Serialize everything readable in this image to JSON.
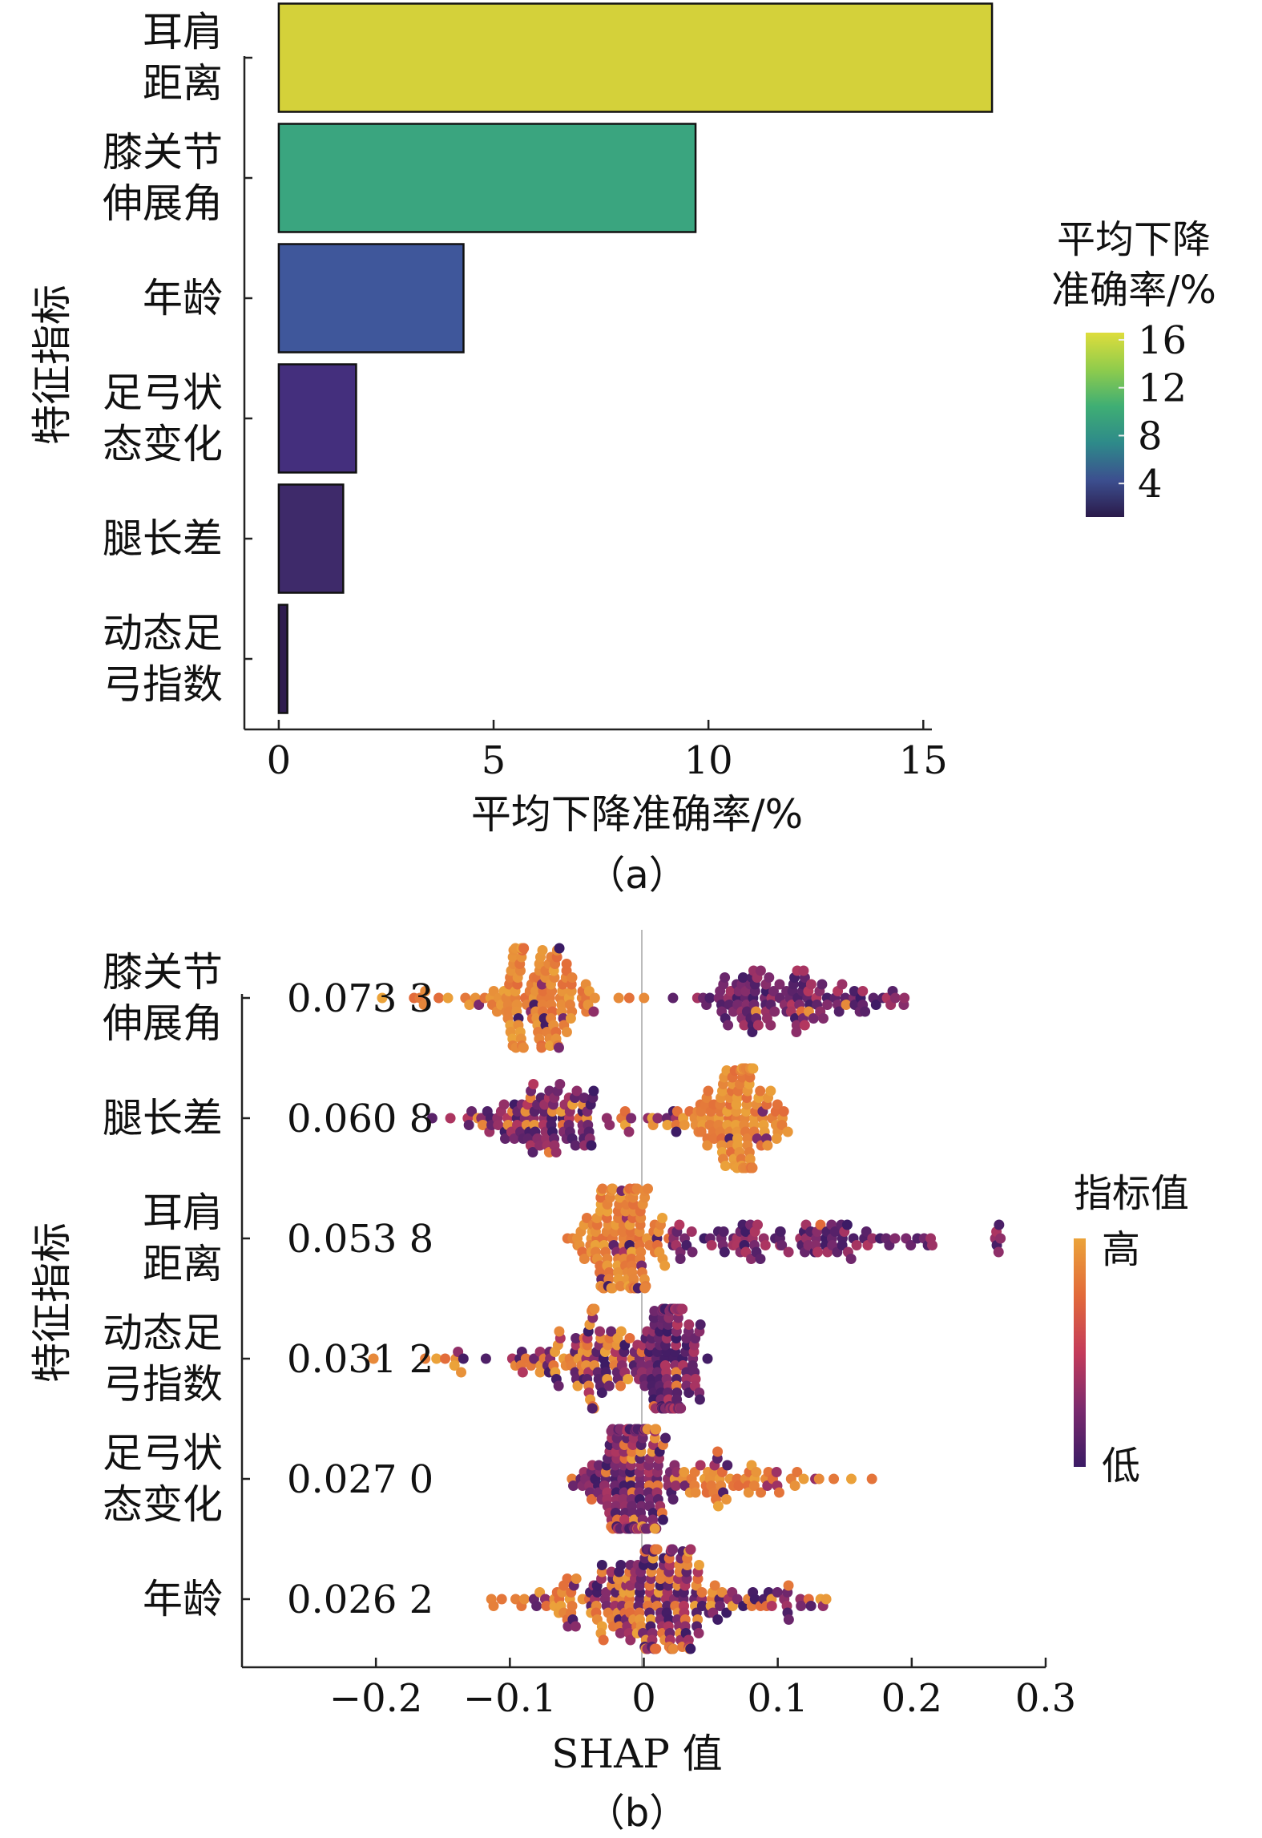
{
  "chart_data": [
    {
      "type": "bar",
      "orientation": "horizontal",
      "panel_label": "（a）",
      "title": "",
      "xlabel": "平均下降准确率/%",
      "ylabel": "特征指标",
      "categories": [
        {
          "lines": [
            "耳肩",
            "距离"
          ],
          "value": 16.6,
          "color": "#d4d13a"
        },
        {
          "lines": [
            "膝关节",
            "伸展角"
          ],
          "value": 9.7,
          "color": "#3aa57f"
        },
        {
          "lines": [
            "年龄"
          ],
          "value": 4.3,
          "color": "#3f579b"
        },
        {
          "lines": [
            "足弓状",
            "态变化"
          ],
          "value": 1.8,
          "color": "#442f7d"
        },
        {
          "lines": [
            "腿长差"
          ],
          "value": 1.5,
          "color": "#3e2a6a"
        },
        {
          "lines": [
            "动态足",
            "弓指数"
          ],
          "value": 0.2,
          "color": "#2f1c4f"
        }
      ],
      "xlim": [
        -0.8,
        15.2
      ],
      "xticks": [
        "0",
        "5",
        "10",
        "15"
      ],
      "xtick_values": [
        0,
        5,
        10,
        15
      ],
      "grid": false,
      "colorbar": {
        "title_lines": [
          "平均下降",
          "准确率/%"
        ],
        "ticks": [
          "16",
          "12",
          "8",
          "4"
        ],
        "tick_values": [
          16,
          12,
          8,
          4
        ],
        "range": [
          1.2,
          16.6
        ],
        "colors": [
          "#2b1a4a",
          "#3c4f8f",
          "#2e8a8a",
          "#3fae74",
          "#8fcc4c",
          "#dedd3c"
        ]
      }
    },
    {
      "type": "scatter",
      "variant": "beeswarm",
      "panel_label": "（b）",
      "title": "",
      "xlabel": "SHAP 值",
      "ylabel": "特征指标",
      "xlim": [
        -0.3,
        0.3
      ],
      "xticks": [
        "−0.2",
        "−0.1",
        "0",
        "0.1",
        "0.2",
        "0.3"
      ],
      "xtick_values": [
        -0.2,
        -0.1,
        0,
        0.1,
        0.2,
        0.3
      ],
      "features": [
        {
          "lines": [
            "膝关节",
            "伸展角"
          ],
          "importance": "0.073 3",
          "seed": 11,
          "n": 260,
          "clusters": [
            {
              "c": -0.078,
              "s": 0.022,
              "w": 0.5,
              "hi": 0.95
            },
            {
              "c": 0.095,
              "s": 0.035,
              "w": 0.44,
              "hi": 0.04
            },
            {
              "c": -0.16,
              "s": 0.02,
              "w": 0.03,
              "hi": 0.9
            },
            {
              "c": 0.18,
              "s": 0.02,
              "w": 0.03,
              "hi": 0.05
            }
          ]
        },
        {
          "lines": [
            "腿长差"
          ],
          "importance": "0.060 8",
          "seed": 23,
          "n": 250,
          "clusters": [
            {
              "c": -0.07,
              "s": 0.03,
              "w": 0.44,
              "hi": 0.12
            },
            {
              "c": 0.07,
              "s": 0.018,
              "w": 0.48,
              "hi": 0.95
            },
            {
              "c": 0.0,
              "s": 0.02,
              "w": 0.08,
              "hi": 0.5
            }
          ]
        },
        {
          "lines": [
            "耳肩",
            "距离"
          ],
          "importance": "0.053 8",
          "seed": 37,
          "n": 240,
          "clusters": [
            {
              "c": -0.02,
              "s": 0.018,
              "w": 0.62,
              "hi": 0.92
            },
            {
              "c": 0.1,
              "s": 0.055,
              "w": 0.36,
              "hi": 0.03
            },
            {
              "c": 0.265,
              "s": 0.002,
              "w": 0.02,
              "hi": 0.0
            }
          ]
        },
        {
          "lines": [
            "动态足",
            "弓指数"
          ],
          "importance": "0.031 2",
          "seed": 41,
          "n": 240,
          "clusters": [
            {
              "c": 0.018,
              "s": 0.014,
              "w": 0.5,
              "hi": 0.05
            },
            {
              "c": -0.045,
              "s": 0.025,
              "w": 0.42,
              "hi": 0.55
            },
            {
              "c": -0.13,
              "s": 0.025,
              "w": 0.08,
              "hi": 0.85
            }
          ]
        },
        {
          "lines": [
            "足弓状",
            "态变化"
          ],
          "importance": "0.027 0",
          "seed": 53,
          "n": 240,
          "clusters": [
            {
              "c": -0.01,
              "s": 0.016,
              "w": 0.66,
              "hi": 0.12
            },
            {
              "c": 0.06,
              "s": 0.04,
              "w": 0.34,
              "hi": 0.8
            }
          ]
        },
        {
          "lines": [
            "年龄"
          ],
          "importance": "0.026 2",
          "seed": 67,
          "n": 260,
          "clusters": [
            {
              "c": 0.005,
              "s": 0.03,
              "w": 0.8,
              "hi": 0.45
            },
            {
              "c": -0.06,
              "s": 0.03,
              "w": 0.12,
              "hi": 0.7
            },
            {
              "c": 0.1,
              "s": 0.02,
              "w": 0.08,
              "hi": 0.2
            }
          ]
        }
      ],
      "colorbar": {
        "title": "指标值",
        "high": "高",
        "low": "低",
        "colors": [
          "#3b1b65",
          "#7a2a6e",
          "#c43b5a",
          "#e26a3a",
          "#eba33a"
        ]
      }
    }
  ]
}
